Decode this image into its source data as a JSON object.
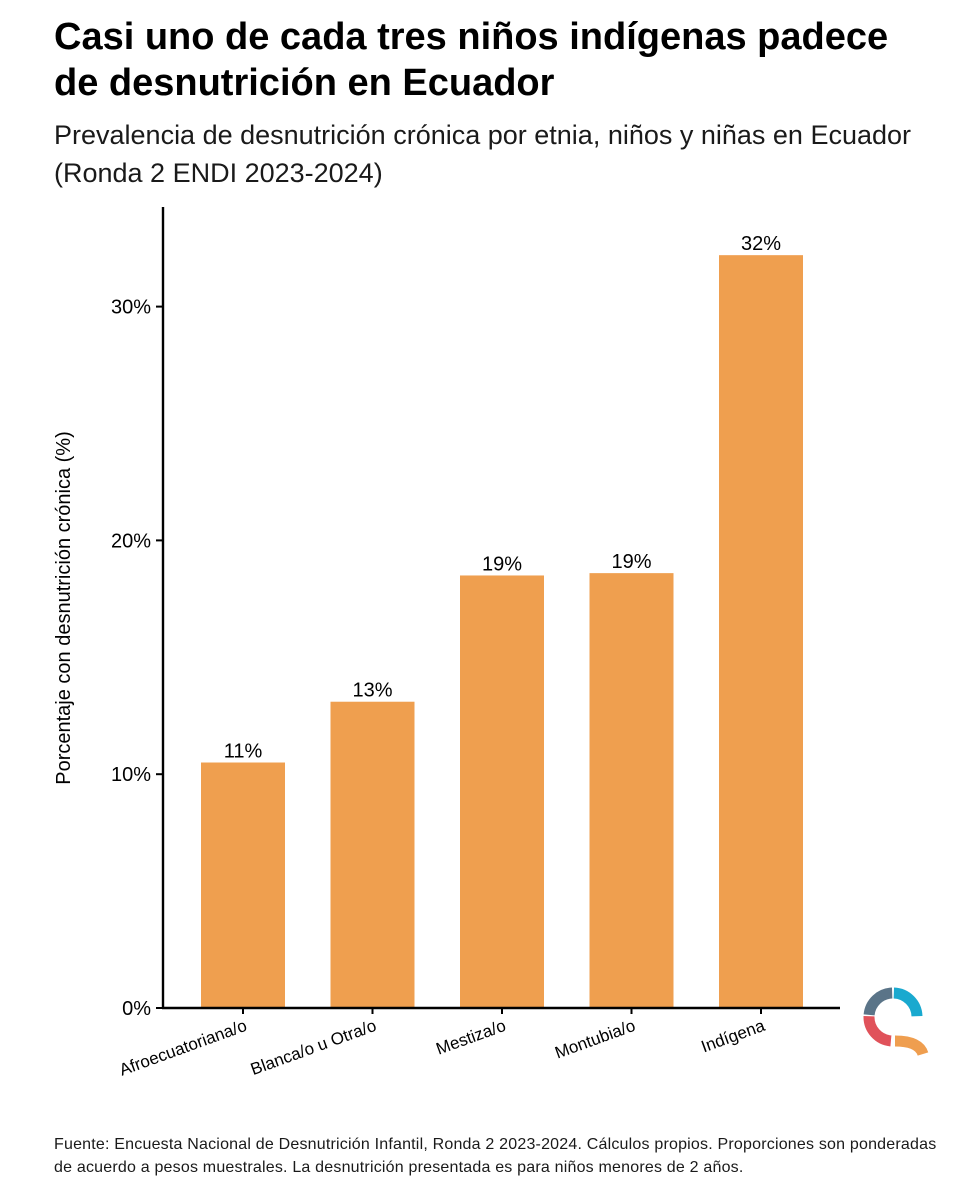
{
  "title": "Casi uno de cada tres niños indígenas padece de desnutrición en Ecuador",
  "subtitle": "Prevalencia de desnutrición crónica por etnia, niños y niñas en Ecuador (Ronda 2 ENDI 2023-2024)",
  "footer": "Fuente: Encuesta Nacional de Desnutrición Infantil, Ronda 2 2023-2024. Cálculos propios. Proporciones son ponderadas de acuerdo a pesos muestrales. La desnutrición presentada es para niños menores de 2 años.",
  "logo": {
    "icon": "q-logo-icon",
    "colors": [
      "#5a7488",
      "#19a9cf",
      "#e0525a",
      "#ef9e4f"
    ]
  },
  "chart_data": {
    "type": "bar",
    "categories": [
      "Afroecuatoriana/o",
      "Blanca/o u Otra/o",
      "Mestiza/o",
      "Montubia/o",
      "Indígena"
    ],
    "values": [
      10.5,
      13.1,
      18.5,
      18.6,
      32.2
    ],
    "data_labels": [
      "11%",
      "13%",
      "19%",
      "19%",
      "32%"
    ],
    "title": "Casi uno de cada tres niños indígenas padece de desnutrición en Ecuador",
    "subtitle": "Prevalencia de desnutrición crónica por etnia, niños y niñas en Ecuador (Ronda 2 ENDI 2023-2024)",
    "xlabel": "",
    "ylabel": "Porcentaje con desnutrición crónica (%)",
    "yticks": [
      0,
      10,
      20,
      30
    ],
    "ytick_labels": [
      "0%",
      "10%",
      "20%",
      "30%"
    ],
    "ylim": [
      0,
      34
    ],
    "grid": false,
    "bar_color": "#ef9f4f"
  }
}
